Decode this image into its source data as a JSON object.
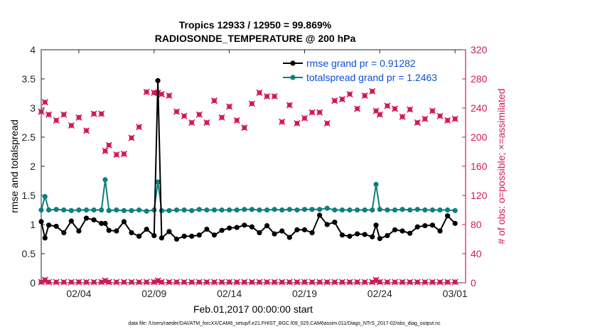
{
  "chart_data": {
    "type": "line",
    "title": "Tropics 12933 / 12950 = 99.869%",
    "subtitle": "RADIOSONDE_TEMPERATURE @ 200 hPa",
    "xlabel": "Feb.01,2017 00:00:00 start",
    "ylabel": "rmse and totalspread",
    "ylabel_right": "# of obs: o=possible; ×=assimilated",
    "xlim": [
      0,
      28.2
    ],
    "ylim": [
      0,
      4
    ],
    "ylim_right": [
      0,
      320
    ],
    "x_ticks": [
      2.5,
      7.5,
      12.5,
      17.5,
      22.5,
      27.5
    ],
    "x_tick_labels": [
      "02/04",
      "02/09",
      "02/14",
      "02/19",
      "02/24",
      "03/01"
    ],
    "y_ticks": [
      0,
      0.5,
      1,
      1.5,
      2,
      2.5,
      3,
      3.5,
      4
    ],
    "y_tick_labels": [
      "0",
      "0.5",
      "1",
      "1.5",
      "2",
      "2.5",
      "3",
      "3.5",
      "4"
    ],
    "y_right_ticks": [
      0,
      40,
      80,
      120,
      160,
      200,
      240,
      280,
      320
    ],
    "y_right_tick_labels": [
      "0",
      "40",
      "80",
      "120",
      "160",
      "200",
      "240",
      "280",
      "320"
    ],
    "grid": false,
    "legend_position": "top-right",
    "footnote": "data file: /Users/raeder/DAI/ATM_forcXX/CAM6_setup/f.e21.FHIST_BGC.f09_025.CAM6assim.011/Diags_NTrS_2017-02/obs_diag_output.nc",
    "colors": {
      "rmse": "#000000",
      "spread": "#0d7f7f",
      "obs": "#d0185a",
      "legend_text": "#0b4fd8"
    },
    "series": [
      {
        "name": "rmse grand pr = 0.91282",
        "axis": "left",
        "x": [
          0,
          0.25,
          0.5,
          1,
          1.5,
          2,
          2.5,
          3,
          3.5,
          4,
          4.25,
          4.5,
          5,
          5.5,
          6,
          6.5,
          7,
          7.5,
          7.75,
          8,
          8.5,
          9,
          9.5,
          10,
          10.5,
          11,
          11.5,
          12,
          12.5,
          13,
          13.5,
          14,
          14.5,
          15,
          15.5,
          16,
          16.5,
          17,
          17.5,
          18,
          18.5,
          19,
          19.5,
          20,
          20.5,
          21,
          21.5,
          22,
          22.25,
          22.5,
          23,
          23.5,
          24,
          24.5,
          25,
          25.5,
          26,
          26.5,
          27,
          27.5
        ],
        "y": [
          1.05,
          0.77,
          0.99,
          0.97,
          0.86,
          1.06,
          0.89,
          1.11,
          1.08,
          1.02,
          1.02,
          0.9,
          0.89,
          1.05,
          0.86,
          0.8,
          0.92,
          0.81,
          3.47,
          0.77,
          0.88,
          0.75,
          0.8,
          0.8,
          0.82,
          0.92,
          0.82,
          0.9,
          0.94,
          0.95,
          0.99,
          0.96,
          0.86,
          0.98,
          0.84,
          0.89,
          0.78,
          0.91,
          0.91,
          0.86,
          1.16,
          1.0,
          1.04,
          0.82,
          0.8,
          0.84,
          0.83,
          0.79,
          0.99,
          0.76,
          0.81,
          0.91,
          0.89,
          0.85,
          0.96,
          0.98,
          0.99,
          0.89,
          1.15,
          1.02
        ]
      },
      {
        "name": "totalspread grand pr = 1.2463",
        "axis": "left",
        "x": [
          0,
          0.25,
          0.5,
          1,
          1.5,
          2,
          2.5,
          3,
          3.5,
          4,
          4.25,
          4.5,
          5,
          5.5,
          6,
          6.5,
          7,
          7.5,
          7.75,
          8,
          8.5,
          9,
          9.5,
          10,
          10.5,
          11,
          11.5,
          12,
          12.5,
          13,
          13.5,
          14,
          14.5,
          15,
          15.5,
          16,
          16.5,
          17,
          17.5,
          18,
          18.5,
          19,
          19.5,
          20,
          20.5,
          21,
          21.5,
          22,
          22.25,
          22.5,
          23,
          23.5,
          24,
          24.5,
          25,
          25.5,
          26,
          26.5,
          27,
          27.5
        ],
        "y": [
          1.25,
          1.48,
          1.25,
          1.26,
          1.25,
          1.24,
          1.25,
          1.25,
          1.25,
          1.25,
          1.77,
          1.24,
          1.25,
          1.24,
          1.24,
          1.25,
          1.23,
          1.25,
          1.73,
          1.24,
          1.24,
          1.25,
          1.25,
          1.24,
          1.26,
          1.25,
          1.25,
          1.25,
          1.25,
          1.25,
          1.26,
          1.26,
          1.25,
          1.25,
          1.26,
          1.25,
          1.26,
          1.25,
          1.26,
          1.26,
          1.26,
          1.28,
          1.25,
          1.25,
          1.25,
          1.25,
          1.25,
          1.25,
          1.69,
          1.26,
          1.25,
          1.25,
          1.26,
          1.25,
          1.26,
          1.25,
          1.25,
          1.25,
          1.25,
          1.24
        ]
      },
      {
        "name": "",
        "axis": "right",
        "marker": "x",
        "x": [
          0,
          0.25,
          0.5,
          1,
          1.5,
          2,
          2.5,
          3,
          3.5,
          4,
          4.25,
          4.5,
          5,
          5.5,
          6,
          6.5,
          7,
          7.5,
          7.75,
          8,
          8.5,
          9,
          9.5,
          10,
          10.5,
          11,
          11.5,
          12,
          12.5,
          13,
          13.5,
          14,
          14.5,
          15,
          15.5,
          16,
          16.5,
          17,
          17.5,
          18,
          18.5,
          19,
          19.5,
          20,
          20.5,
          21,
          21.5,
          22,
          22.25,
          22.5,
          23,
          23.5,
          24,
          24.5,
          25,
          25.5,
          26,
          26.5,
          27,
          27.5
        ],
        "y": [
          235,
          248,
          231,
          223,
          231,
          216,
          227,
          209,
          232,
          232,
          181,
          189,
          176,
          177,
          199,
          214,
          262,
          261,
          261,
          259,
          257,
          235,
          229,
          220,
          231,
          220,
          250,
          227,
          242,
          223,
          213,
          246,
          261,
          256,
          256,
          221,
          244,
          219,
          226,
          234,
          234,
          219,
          250,
          252,
          259,
          239,
          257,
          263,
          236,
          231,
          243,
          239,
          228,
          238,
          220,
          225,
          236,
          229,
          223,
          225
        ]
      },
      {
        "name": "",
        "axis": "right",
        "marker": "o",
        "x": [
          0,
          0.25,
          0.5,
          1,
          1.5,
          2,
          2.5,
          3,
          3.5,
          4,
          4.25,
          4.5,
          5,
          5.5,
          6,
          6.5,
          7,
          7.5,
          7.75,
          8,
          8.5,
          9,
          9.5,
          10,
          10.5,
          11,
          11.5,
          12,
          12.5,
          13,
          13.5,
          14,
          14.5,
          15,
          15.5,
          16,
          16.5,
          17,
          17.5,
          18,
          18.5,
          19,
          19.5,
          20,
          20.5,
          21,
          21.5,
          22,
          22.25,
          22.5,
          23,
          23.5,
          24,
          24.5,
          25,
          25.5,
          26,
          26.5,
          27,
          27.5
        ],
        "y": [
          1,
          4,
          1,
          1,
          1,
          1,
          1,
          1,
          1,
          1,
          3,
          1,
          1,
          1,
          1,
          1,
          1,
          1,
          3,
          1,
          1,
          1,
          1,
          1,
          1,
          1,
          1,
          1,
          1,
          1,
          1,
          1,
          1,
          1,
          1,
          1,
          1,
          1,
          1,
          1,
          1,
          1,
          1,
          1,
          1,
          1,
          1,
          1,
          4,
          1,
          1,
          1,
          1,
          1,
          1,
          1,
          1,
          1,
          1,
          1
        ]
      }
    ]
  }
}
